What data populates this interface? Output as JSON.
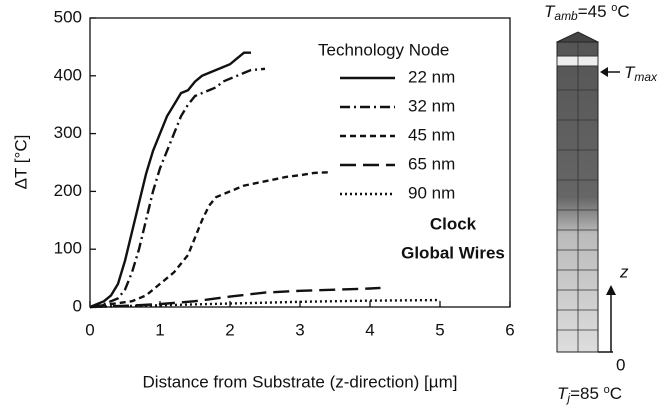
{
  "chart_data": {
    "type": "line",
    "xlabel": "Distance from Substrate (z-direction) [µm]",
    "ylabel": "ΔT [°C]",
    "legend_title": "Technology Node",
    "annotations": [
      "Clock",
      "Global Wires"
    ],
    "xlim": [
      0,
      6
    ],
    "xticks": [
      0,
      1,
      2,
      3,
      4,
      5,
      6
    ],
    "ylim": [
      0,
      500
    ],
    "yticks": [
      0,
      100,
      200,
      300,
      400,
      500
    ],
    "grid": false,
    "series": [
      {
        "name": "22 nm",
        "color": "#111111",
        "dash": "solid",
        "x": [
          0,
          0.1,
          0.2,
          0.3,
          0.4,
          0.5,
          0.6,
          0.7,
          0.8,
          0.9,
          1.0,
          1.1,
          1.2,
          1.3,
          1.4,
          1.5,
          1.6,
          1.7,
          1.8,
          1.9,
          2.0,
          2.1,
          2.2,
          2.3
        ],
        "values": [
          0,
          5,
          10,
          20,
          40,
          80,
          130,
          180,
          230,
          270,
          300,
          330,
          350,
          370,
          375,
          390,
          400,
          405,
          410,
          415,
          420,
          430,
          440,
          440
        ]
      },
      {
        "name": "32 nm",
        "color": "#111111",
        "dash": "dashdot",
        "x": [
          0,
          0.2,
          0.4,
          0.5,
          0.6,
          0.7,
          0.8,
          0.9,
          1.0,
          1.1,
          1.2,
          1.3,
          1.4,
          1.5,
          1.6,
          1.7,
          1.8,
          1.9,
          2.0,
          2.1,
          2.2,
          2.3,
          2.5
        ],
        "values": [
          0,
          5,
          15,
          30,
          60,
          100,
          150,
          200,
          240,
          270,
          300,
          330,
          350,
          365,
          370,
          375,
          380,
          390,
          395,
          400,
          405,
          410,
          412
        ]
      },
      {
        "name": "45 nm",
        "color": "#111111",
        "dash": "dash",
        "x": [
          0,
          0.3,
          0.6,
          0.8,
          1.0,
          1.2,
          1.4,
          1.5,
          1.6,
          1.7,
          1.8,
          2.0,
          2.2,
          2.4,
          2.6,
          2.8,
          3.0,
          3.2,
          3.4
        ],
        "values": [
          0,
          5,
          10,
          20,
          40,
          60,
          90,
          120,
          150,
          175,
          190,
          200,
          210,
          215,
          220,
          225,
          228,
          232,
          233
        ]
      },
      {
        "name": "65 nm",
        "color": "#111111",
        "dash": "longdash",
        "x": [
          0,
          0.5,
          1.0,
          1.5,
          2.0,
          2.5,
          3.0,
          3.5,
          4.0,
          4.15
        ],
        "values": [
          0,
          2,
          5,
          10,
          18,
          25,
          28,
          30,
          32,
          33
        ]
      },
      {
        "name": "90 nm",
        "color": "#111111",
        "dash": "dot",
        "x": [
          0,
          1,
          2,
          3,
          4,
          5
        ],
        "values": [
          0,
          3,
          6,
          9,
          11,
          12
        ]
      }
    ]
  },
  "diagram": {
    "top": {
      "symbol": "T",
      "sub": "amb",
      "eq": "=45 ",
      "sup": "o",
      "unit": "C"
    },
    "max": {
      "symbol": "T",
      "sub": "max"
    },
    "axis": "z",
    "origin": "0",
    "bottom": {
      "symbol": "T",
      "sub": "j",
      "eq": "=85 ",
      "sup": "o",
      "unit": "C"
    }
  }
}
